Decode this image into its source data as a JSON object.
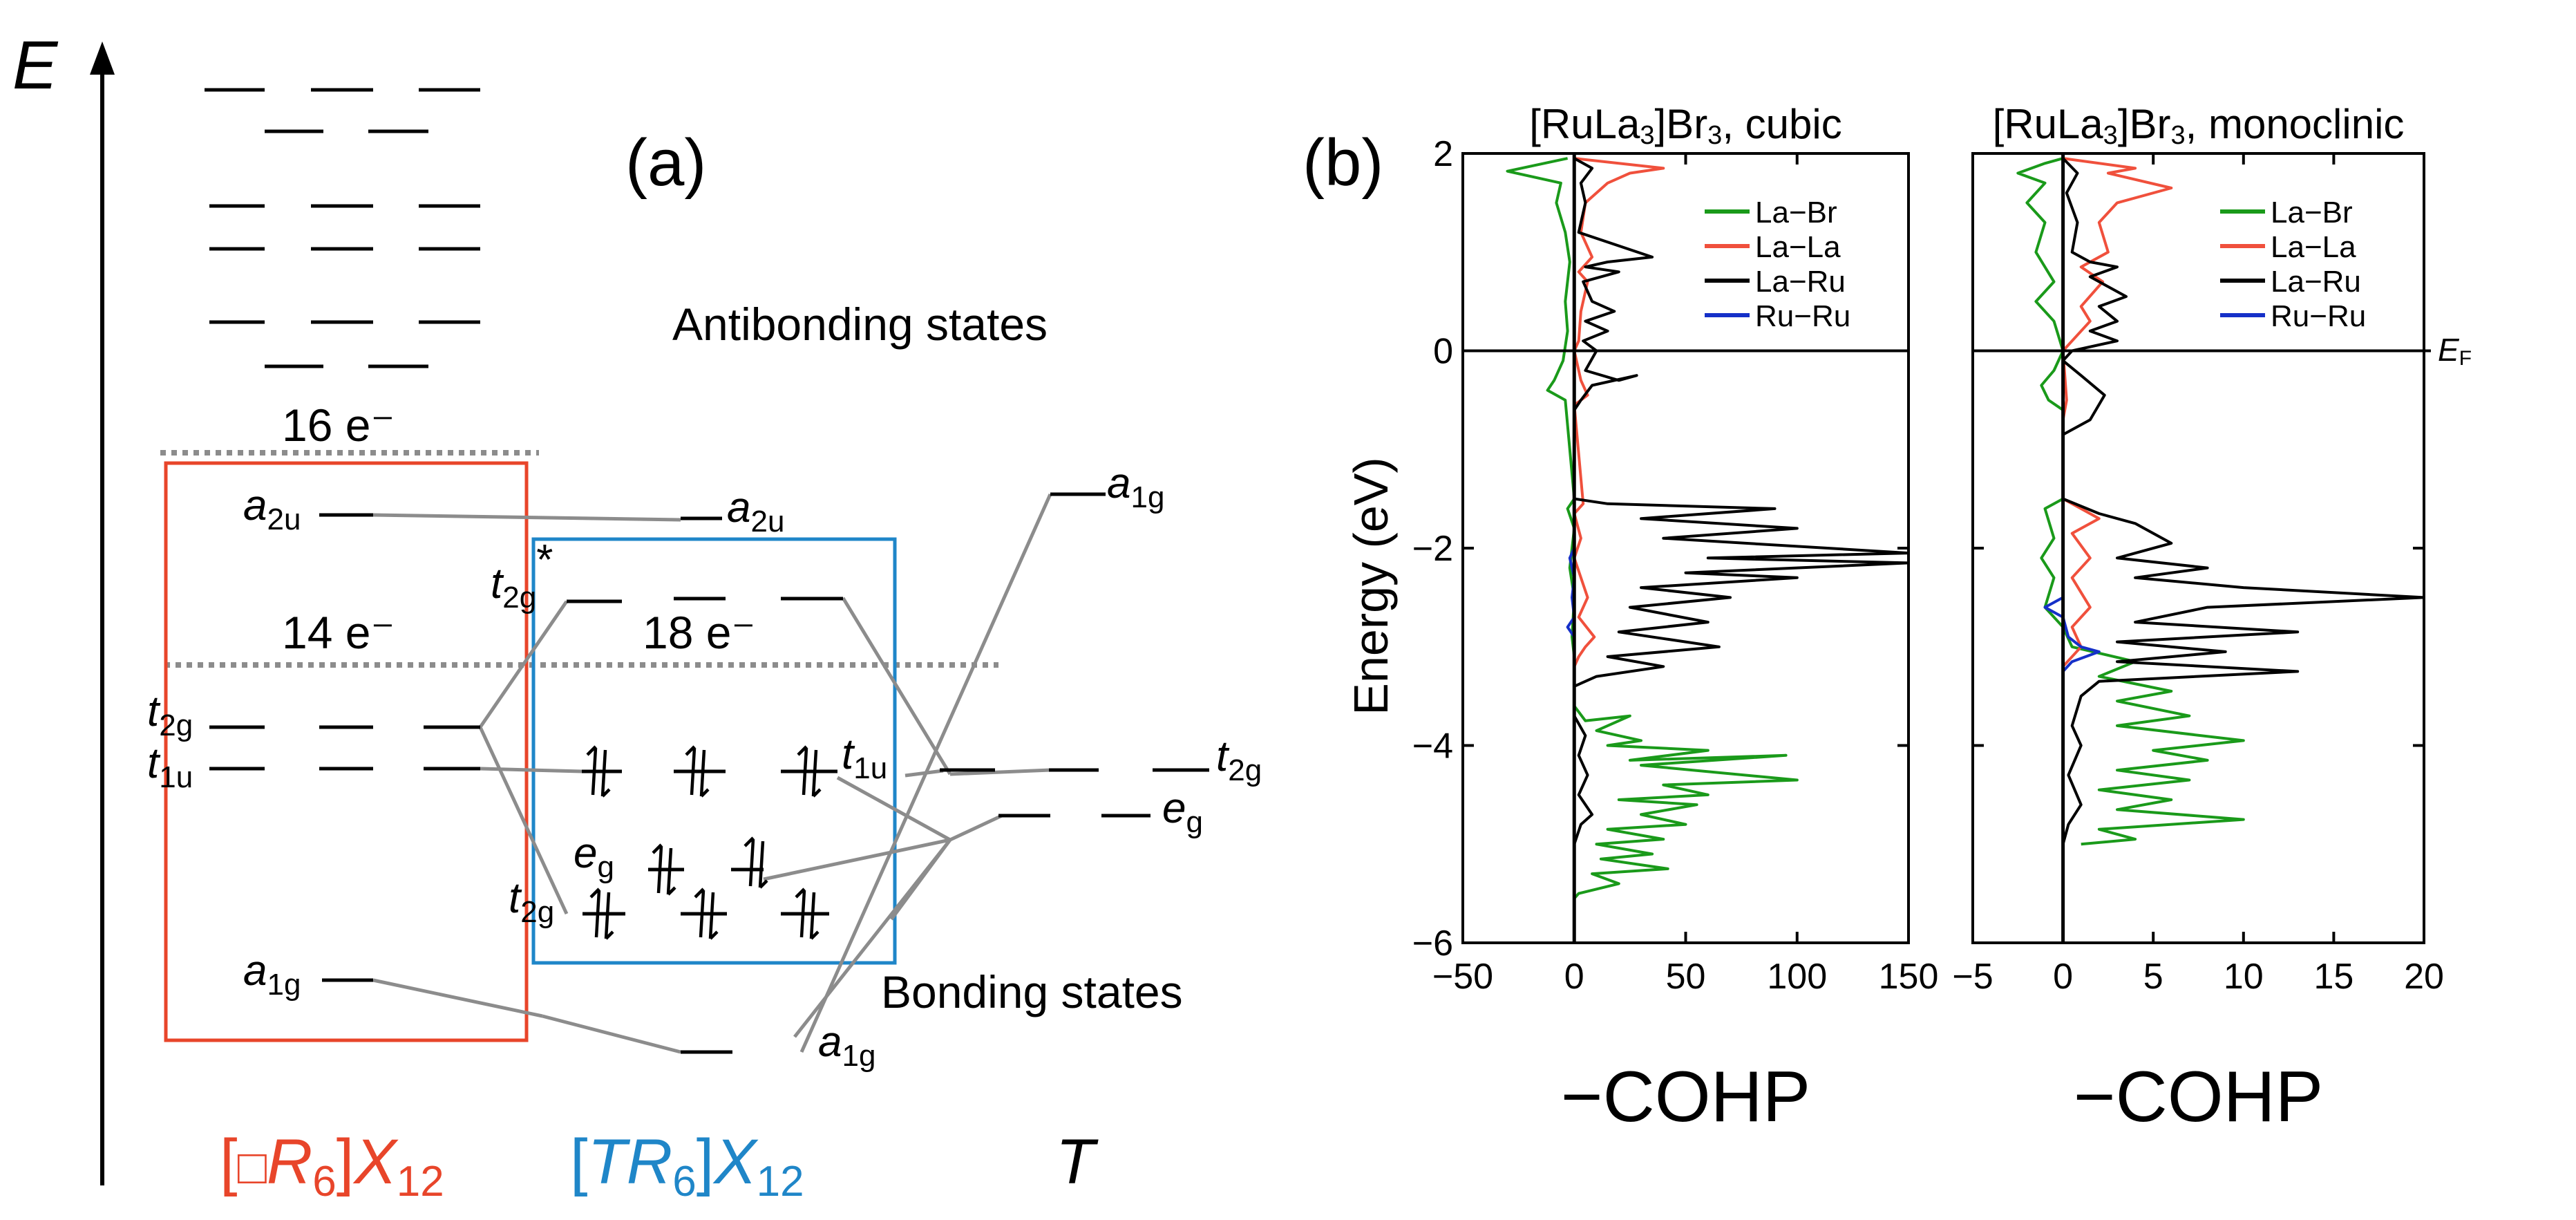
{
  "panel_a": {
    "panel_label": "(a)",
    "axis_label": "E",
    "antibonding_label": "Antibonding states",
    "bonding_label": "Bonding states",
    "electron_counts": {
      "e16": "16 e⁻",
      "e14": "14 e⁻",
      "e18": "18 e⁻"
    },
    "orbital_labels": {
      "left_a2u": [
        "a",
        "2u"
      ],
      "left_t2g": [
        "t",
        "2g"
      ],
      "left_t1u": [
        "t",
        "1u"
      ],
      "left_a1g": [
        "a",
        "1g"
      ],
      "mid_a2u": [
        "a",
        "2u"
      ],
      "mid_t2g_star": [
        "t",
        "2g",
        "*"
      ],
      "mid_t1u": [
        "t",
        "1u"
      ],
      "mid_eg": [
        "e",
        "g"
      ],
      "mid_t2g": [
        "t",
        "2g"
      ],
      "mid_a1g": [
        "a",
        "1g"
      ],
      "right_a1g": [
        "a",
        "1g"
      ],
      "right_t2g": [
        "t",
        "2g"
      ],
      "right_eg": [
        "e",
        "g"
      ]
    },
    "column_labels": {
      "left": {
        "open": "[",
        "box": "□",
        "R": "R",
        "six": "6",
        "close": "]",
        "X": "X",
        "twelve": "12"
      },
      "middle": {
        "open": "[",
        "T": "T",
        "R": "R",
        "six": "6",
        "close": "]",
        "X": "X",
        "twelve": "12"
      },
      "right": "T"
    },
    "colors": {
      "left_box": "#e8452a",
      "middle_box": "#1f86c8",
      "connector": "#8c8c8c",
      "dotted": "#8c8c8c"
    }
  },
  "panel_b": {
    "panel_label": "(b)",
    "ylabel": "Energy (eV)",
    "fermi_label": "E",
    "fermi_sub": "F",
    "xlabel": "−COHP",
    "series_colors": {
      "La-Br": "#1a9a1a",
      "La-La": "#f0503c",
      "La-Ru": "#000000",
      "Ru-Ru": "#1530c8"
    }
  },
  "chart_data": [
    {
      "type": "line",
      "title_parts": [
        "[RuLa",
        "3",
        "]Br",
        "3",
        ", cubic"
      ],
      "xlabel": "−COHP",
      "ylabel": "Energy (eV)",
      "xlim": [
        -50,
        150
      ],
      "ylim": [
        -6,
        2
      ],
      "xticks": [
        -50,
        0,
        50,
        100,
        150
      ],
      "yticks": [
        2,
        0,
        -2,
        -4,
        -6
      ],
      "legend": [
        "La−Br",
        "La−La",
        "La−Ru",
        "Ru−Ru"
      ],
      "legend_position": "top-right",
      "series": [
        {
          "name": "La-Br",
          "points": [
            [
              -3,
              1.95
            ],
            [
              -30,
              1.82
            ],
            [
              -6,
              1.7
            ],
            [
              -8,
              1.5
            ],
            [
              -4,
              1.2
            ],
            [
              -2,
              0.9
            ],
            [
              -4,
              0.5
            ],
            [
              -3,
              0.2
            ],
            [
              -5,
              -0.1
            ],
            [
              -9,
              -0.3
            ],
            [
              -12,
              -0.4
            ],
            [
              -4,
              -0.5
            ],
            [
              0,
              -1.5
            ],
            [
              -3,
              -1.6
            ],
            [
              0,
              -1.8
            ],
            [
              -2,
              -2.2
            ],
            [
              0,
              -2.5
            ],
            [
              -1,
              -2.9
            ],
            [
              0,
              -3.1
            ],
            [
              0,
              -3.6
            ],
            [
              5,
              -3.75
            ],
            [
              25,
              -3.7
            ],
            [
              10,
              -3.85
            ],
            [
              30,
              -3.95
            ],
            [
              15,
              -4.0
            ],
            [
              60,
              -4.05
            ],
            [
              25,
              -4.15
            ],
            [
              95,
              -4.1
            ],
            [
              30,
              -4.2
            ],
            [
              100,
              -4.35
            ],
            [
              40,
              -4.4
            ],
            [
              60,
              -4.5
            ],
            [
              20,
              -4.55
            ],
            [
              55,
              -4.6
            ],
            [
              30,
              -4.7
            ],
            [
              50,
              -4.8
            ],
            [
              15,
              -4.85
            ],
            [
              40,
              -4.95
            ],
            [
              10,
              -5.0
            ],
            [
              35,
              -5.1
            ],
            [
              12,
              -5.15
            ],
            [
              42,
              -5.25
            ],
            [
              8,
              -5.3
            ],
            [
              20,
              -5.4
            ],
            [
              2,
              -5.5
            ],
            [
              0,
              -5.55
            ]
          ]
        },
        {
          "name": "La-La",
          "points": [
            [
              0,
              1.95
            ],
            [
              40,
              1.85
            ],
            [
              25,
              1.8
            ],
            [
              15,
              1.7
            ],
            [
              5,
              1.5
            ],
            [
              3,
              1.2
            ],
            [
              8,
              0.95
            ],
            [
              2,
              0.8
            ],
            [
              6,
              0.7
            ],
            [
              3,
              0.4
            ],
            [
              2,
              0.1
            ],
            [
              0,
              0.0
            ],
            [
              3,
              -0.3
            ],
            [
              6,
              -0.45
            ],
            [
              0,
              -0.55
            ],
            [
              4,
              -1.55
            ],
            [
              0,
              -1.65
            ],
            [
              3,
              -1.9
            ],
            [
              0,
              -2.1
            ],
            [
              6,
              -2.5
            ],
            [
              2,
              -2.7
            ],
            [
              9,
              -2.9
            ],
            [
              5,
              -3.0
            ],
            [
              2,
              -3.1
            ],
            [
              0,
              -3.2
            ]
          ]
        },
        {
          "name": "La-Ru",
          "points": [
            [
              0,
              1.95
            ],
            [
              8,
              1.85
            ],
            [
              3,
              1.7
            ],
            [
              5,
              1.5
            ],
            [
              2,
              1.2
            ],
            [
              35,
              0.95
            ],
            [
              15,
              0.9
            ],
            [
              5,
              0.85
            ],
            [
              20,
              0.8
            ],
            [
              4,
              0.7
            ],
            [
              8,
              0.5
            ],
            [
              18,
              0.4
            ],
            [
              5,
              0.3
            ],
            [
              15,
              0.2
            ],
            [
              4,
              0.1
            ],
            [
              10,
              0.0
            ],
            [
              5,
              -0.2
            ],
            [
              20,
              -0.3
            ],
            [
              28,
              -0.25
            ],
            [
              8,
              -0.35
            ],
            [
              3,
              -0.5
            ],
            [
              0,
              -0.6
            ],
            [
              0,
              -1.5
            ],
            [
              15,
              -1.55
            ],
            [
              90,
              -1.6
            ],
            [
              30,
              -1.7
            ],
            [
              100,
              -1.8
            ],
            [
              40,
              -1.9
            ],
            [
              150,
              -2.05
            ],
            [
              60,
              -2.1
            ],
            [
              150,
              -2.15
            ],
            [
              50,
              -2.25
            ],
            [
              100,
              -2.3
            ],
            [
              30,
              -2.4
            ],
            [
              70,
              -2.5
            ],
            [
              25,
              -2.6
            ],
            [
              60,
              -2.75
            ],
            [
              20,
              -2.85
            ],
            [
              65,
              -3.0
            ],
            [
              15,
              -3.1
            ],
            [
              40,
              -3.2
            ],
            [
              10,
              -3.3
            ],
            [
              0,
              -3.4
            ],
            [
              0,
              -3.7
            ],
            [
              5,
              -3.9
            ],
            [
              2,
              -4.1
            ],
            [
              6,
              -4.3
            ],
            [
              2,
              -4.5
            ],
            [
              8,
              -4.7
            ],
            [
              3,
              -4.8
            ],
            [
              0,
              -5.0
            ]
          ]
        },
        {
          "name": "Ru-Ru",
          "points": [
            [
              0,
              -2.0
            ],
            [
              -2,
              -2.1
            ],
            [
              0,
              -2.3
            ],
            [
              -1,
              -2.5
            ],
            [
              0,
              -2.7
            ],
            [
              -3,
              -2.8
            ],
            [
              0,
              -2.9
            ]
          ]
        }
      ]
    },
    {
      "type": "line",
      "title_parts": [
        "[RuLa",
        "3",
        "]Br",
        "3",
        ", monoclinic"
      ],
      "xlabel": "−COHP",
      "ylabel": "",
      "xlim": [
        -5,
        20
      ],
      "ylim": [
        -6,
        2
      ],
      "xticks": [
        -5,
        0,
        5,
        10,
        15,
        20
      ],
      "yticks": [
        2,
        0,
        -2,
        -4,
        -6
      ],
      "legend": [
        "La−Br",
        "La−La",
        "La−Ru",
        "Ru−Ru"
      ],
      "legend_position": "top-right",
      "series": [
        {
          "name": "La-Br",
          "points": [
            [
              0,
              1.95
            ],
            [
              -1,
              1.9
            ],
            [
              -2.5,
              1.8
            ],
            [
              -1,
              1.7
            ],
            [
              -2,
              1.5
            ],
            [
              -1,
              1.3
            ],
            [
              -1.5,
              1.0
            ],
            [
              -0.5,
              0.7
            ],
            [
              -1.5,
              0.5
            ],
            [
              -0.5,
              0.3
            ],
            [
              0,
              0.0
            ],
            [
              -0.5,
              -0.2
            ],
            [
              -1.2,
              -0.35
            ],
            [
              -0.8,
              -0.5
            ],
            [
              0,
              -0.6
            ],
            [
              0,
              -1.5
            ],
            [
              -1,
              -1.6
            ],
            [
              -0.5,
              -1.9
            ],
            [
              -1.2,
              -2.1
            ],
            [
              -0.5,
              -2.3
            ],
            [
              -1,
              -2.6
            ],
            [
              0,
              -2.8
            ],
            [
              0.5,
              -3.0
            ],
            [
              4,
              -3.15
            ],
            [
              2,
              -3.3
            ],
            [
              6,
              -3.45
            ],
            [
              3,
              -3.55
            ],
            [
              7,
              -3.7
            ],
            [
              3,
              -3.8
            ],
            [
              10,
              -3.95
            ],
            [
              5,
              -4.05
            ],
            [
              8,
              -4.15
            ],
            [
              3,
              -4.25
            ],
            [
              7,
              -4.35
            ],
            [
              2,
              -4.45
            ],
            [
              6,
              -4.55
            ],
            [
              3,
              -4.65
            ],
            [
              10,
              -4.75
            ],
            [
              2,
              -4.85
            ],
            [
              4,
              -4.95
            ],
            [
              1,
              -5.0
            ]
          ]
        },
        {
          "name": "La-La",
          "points": [
            [
              0,
              1.95
            ],
            [
              4,
              1.85
            ],
            [
              2.5,
              1.8
            ],
            [
              6,
              1.65
            ],
            [
              3,
              1.5
            ],
            [
              2,
              1.3
            ],
            [
              2.5,
              1.0
            ],
            [
              1,
              0.85
            ],
            [
              2.2,
              0.7
            ],
            [
              1,
              0.45
            ],
            [
              1.5,
              0.3
            ],
            [
              0.5,
              0.1
            ],
            [
              0,
              0.0
            ],
            [
              0.2,
              -0.5
            ],
            [
              0,
              -0.7
            ],
            [
              0,
              -1.5
            ],
            [
              1,
              -1.6
            ],
            [
              2,
              -1.7
            ],
            [
              0.5,
              -1.85
            ],
            [
              1.5,
              -2.1
            ],
            [
              0.5,
              -2.3
            ],
            [
              1.5,
              -2.6
            ],
            [
              0.5,
              -2.8
            ],
            [
              1,
              -3.0
            ],
            [
              0,
              -3.2
            ]
          ]
        },
        {
          "name": "La-Ru",
          "points": [
            [
              0,
              1.95
            ],
            [
              0.8,
              1.8
            ],
            [
              0.2,
              1.6
            ],
            [
              0.8,
              1.3
            ],
            [
              0.5,
              1.0
            ],
            [
              1.5,
              0.9
            ],
            [
              3,
              0.85
            ],
            [
              1.5,
              0.75
            ],
            [
              3.5,
              0.55
            ],
            [
              2,
              0.45
            ],
            [
              3,
              0.3
            ],
            [
              1.5,
              0.2
            ],
            [
              3,
              0.1
            ],
            [
              0.5,
              0.0
            ],
            [
              0,
              -0.1
            ],
            [
              1,
              -0.25
            ],
            [
              2.3,
              -0.45
            ],
            [
              1.5,
              -0.7
            ],
            [
              0,
              -0.85
            ],
            [
              0,
              -1.5
            ],
            [
              2,
              -1.65
            ],
            [
              4,
              -1.75
            ],
            [
              6,
              -1.95
            ],
            [
              3,
              -2.1
            ],
            [
              8,
              -2.2
            ],
            [
              4,
              -2.3
            ],
            [
              10,
              -2.4
            ],
            [
              20,
              -2.5
            ],
            [
              8,
              -2.6
            ],
            [
              4,
              -2.75
            ],
            [
              13,
              -2.85
            ],
            [
              3,
              -2.95
            ],
            [
              9,
              -3.05
            ],
            [
              3,
              -3.15
            ],
            [
              13,
              -3.25
            ],
            [
              2,
              -3.35
            ],
            [
              1,
              -3.5
            ],
            [
              0.5,
              -3.8
            ],
            [
              1,
              -4.0
            ],
            [
              0.3,
              -4.3
            ],
            [
              1,
              -4.6
            ],
            [
              0.3,
              -4.8
            ],
            [
              0,
              -5.0
            ]
          ]
        },
        {
          "name": "Ru-Ru",
          "points": [
            [
              0,
              -2.5
            ],
            [
              -1,
              -2.6
            ],
            [
              0,
              -2.7
            ],
            [
              0.3,
              -2.9
            ],
            [
              1,
              -3.0
            ],
            [
              2,
              -3.05
            ],
            [
              0.5,
              -3.15
            ],
            [
              0,
              -3.25
            ]
          ]
        }
      ]
    }
  ]
}
